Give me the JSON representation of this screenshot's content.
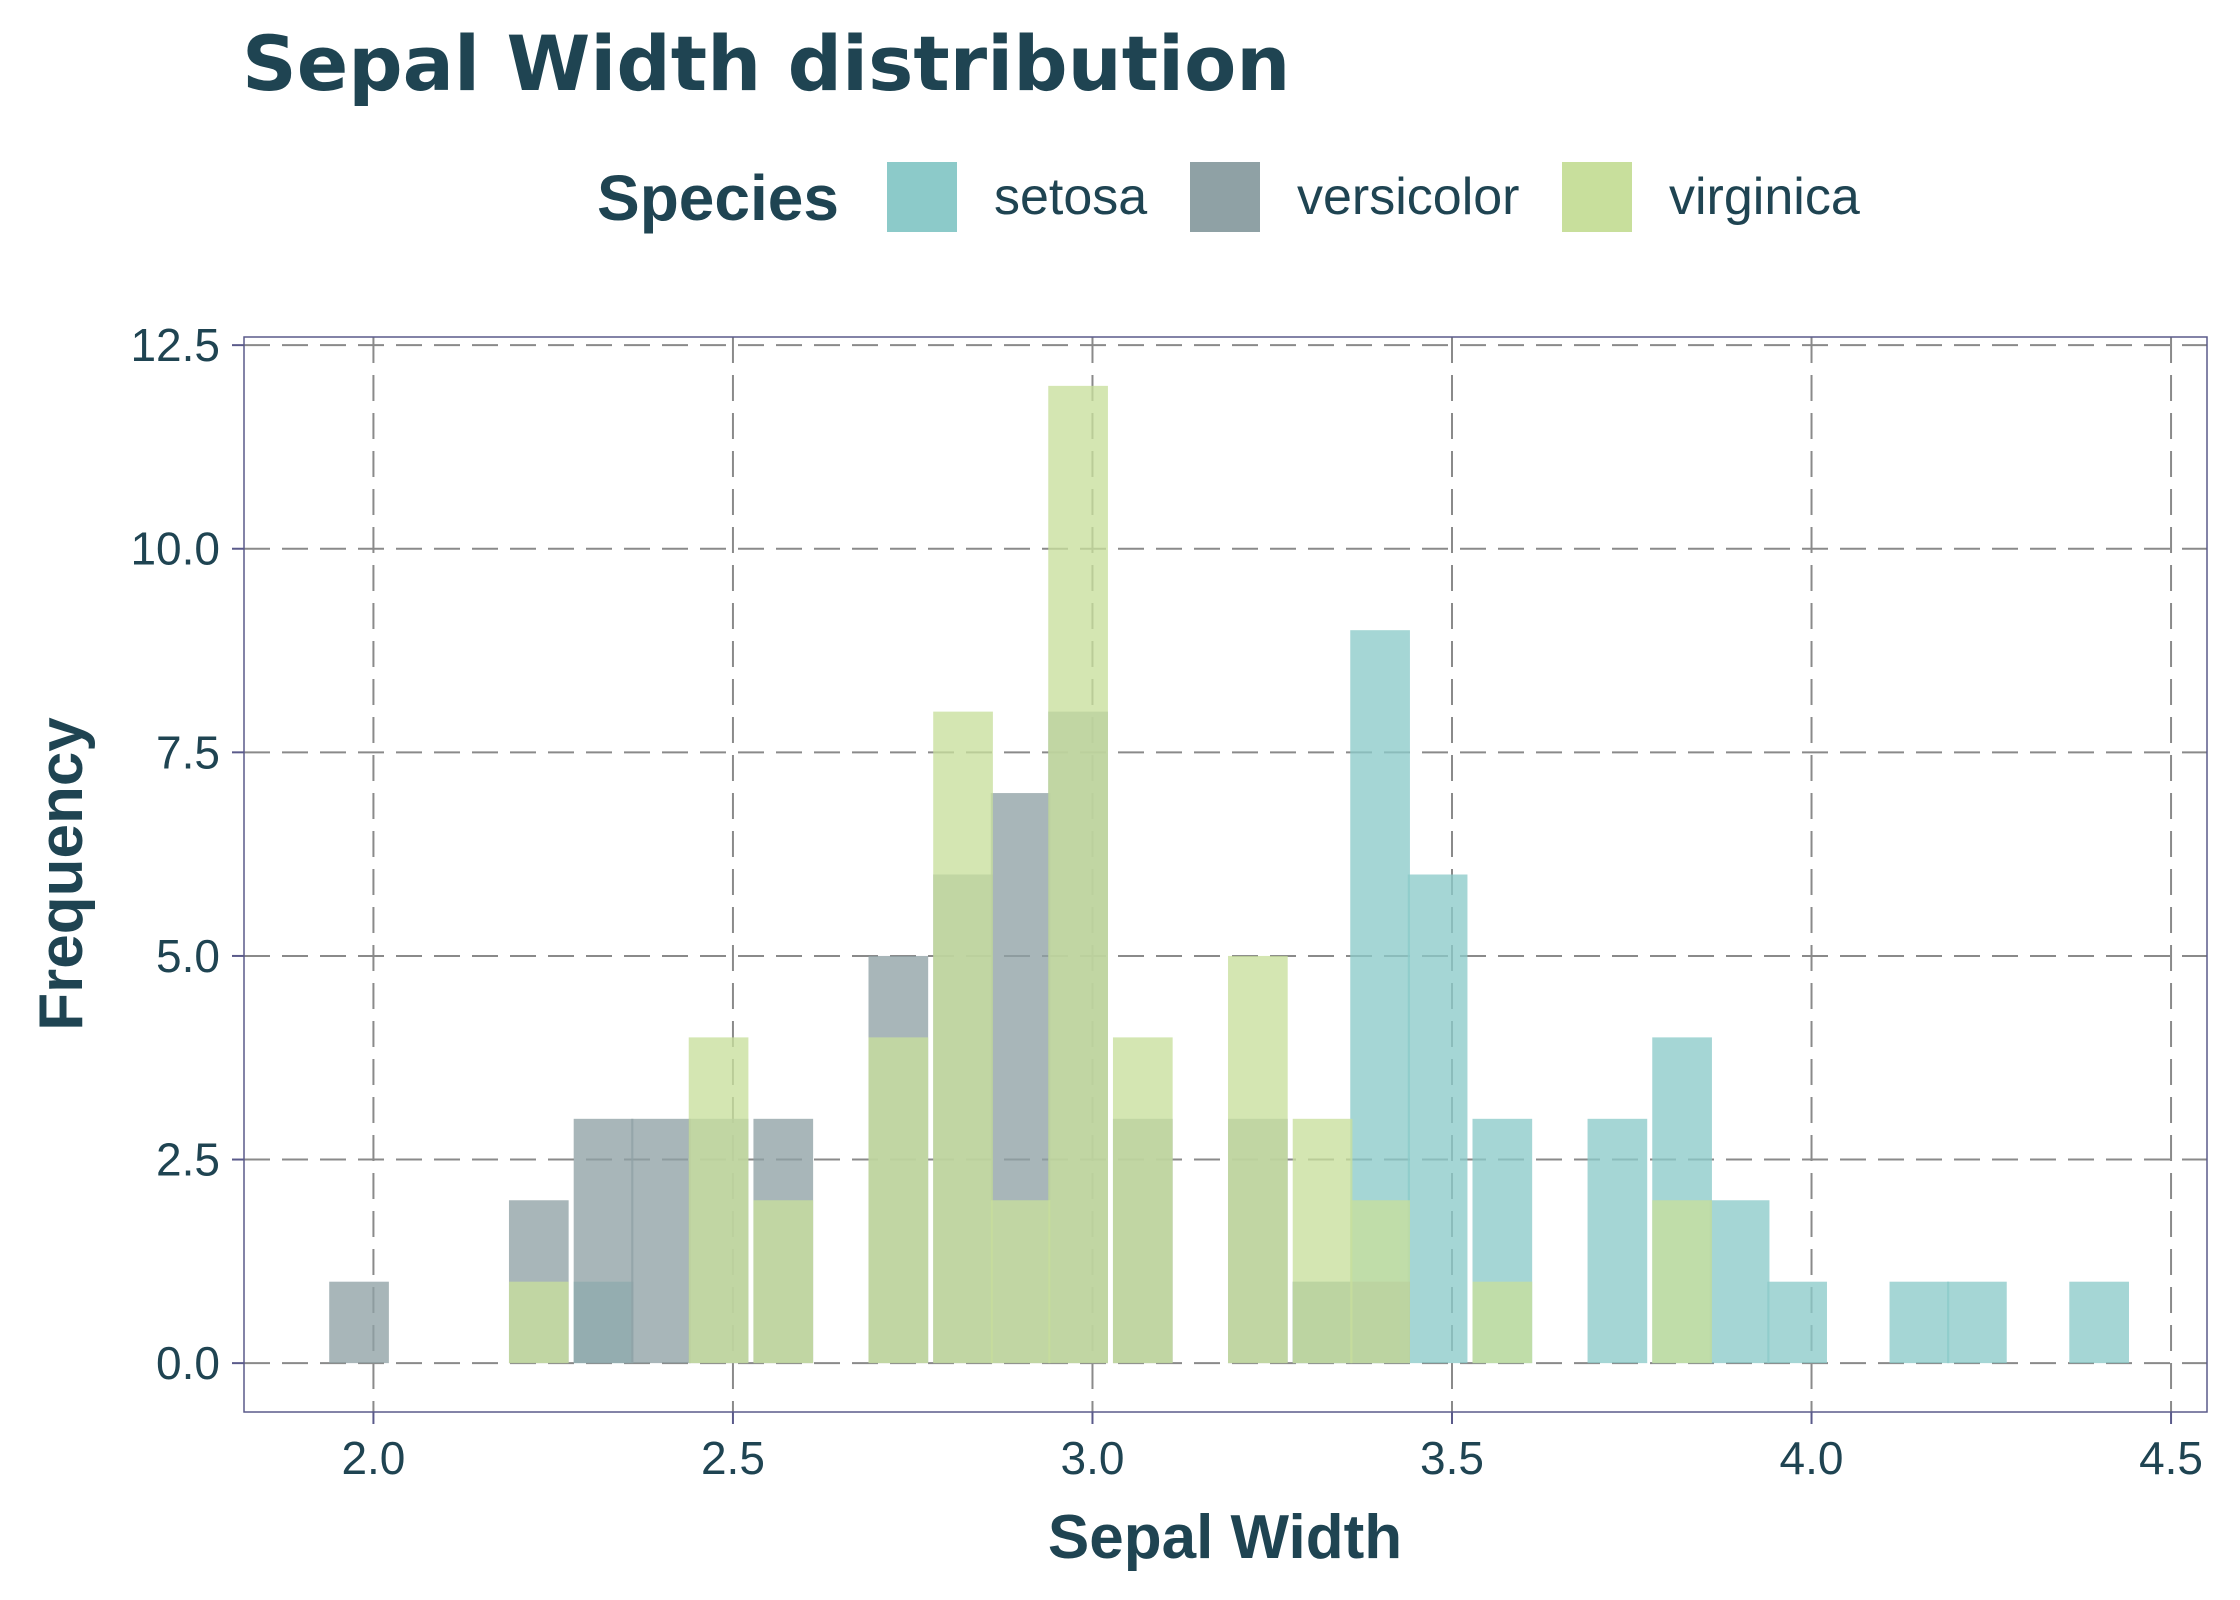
{
  "chart_data": {
    "type": "bar",
    "title": "Sepal Width distribution",
    "xlabel": "Sepal Width",
    "ylabel": "Frequency",
    "xlim": [
      1.82,
      4.55
    ],
    "ylim": [
      -0.6,
      12.6
    ],
    "x_ticks": [
      2.0,
      2.5,
      3.0,
      3.5,
      4.0,
      4.5
    ],
    "x_tick_labels": [
      "2.0",
      "2.5",
      "3.0",
      "3.5",
      "4.0",
      "4.5"
    ],
    "y_ticks": [
      0,
      2.5,
      5,
      7.5,
      10,
      12.5
    ],
    "y_tick_labels": [
      "0.0",
      "2.5",
      "5.0",
      "7.5",
      "10.0",
      "12.5"
    ],
    "grid": true,
    "legend": {
      "title": "Species",
      "position": "top"
    },
    "bin_width": 0.083,
    "series": [
      {
        "name": "setosa",
        "color": "#8ccac9",
        "bins": [
          {
            "x": 2.32,
            "count": 1
          },
          {
            "x": 3.32,
            "count": 1
          },
          {
            "x": 3.4,
            "count": 9
          },
          {
            "x": 3.48,
            "count": 6
          },
          {
            "x": 3.57,
            "count": 3
          },
          {
            "x": 3.73,
            "count": 3
          },
          {
            "x": 3.82,
            "count": 4
          },
          {
            "x": 3.9,
            "count": 2
          },
          {
            "x": 3.98,
            "count": 1
          },
          {
            "x": 4.15,
            "count": 1
          },
          {
            "x": 4.23,
            "count": 1
          },
          {
            "x": 4.4,
            "count": 1
          }
        ]
      },
      {
        "name": "versicolor",
        "color": "#8fa1a5",
        "bins": [
          {
            "x": 1.98,
            "count": 1
          },
          {
            "x": 2.23,
            "count": 2
          },
          {
            "x": 2.32,
            "count": 3
          },
          {
            "x": 2.4,
            "count": 3
          },
          {
            "x": 2.48,
            "count": 3
          },
          {
            "x": 2.57,
            "count": 3
          },
          {
            "x": 2.73,
            "count": 5
          },
          {
            "x": 2.82,
            "count": 6
          },
          {
            "x": 2.9,
            "count": 7
          },
          {
            "x": 2.98,
            "count": 8
          },
          {
            "x": 3.07,
            "count": 3
          },
          {
            "x": 3.23,
            "count": 3
          },
          {
            "x": 3.32,
            "count": 1
          },
          {
            "x": 3.4,
            "count": 1
          }
        ]
      },
      {
        "name": "virginica",
        "color": "#c8df9c",
        "bins": [
          {
            "x": 2.23,
            "count": 1
          },
          {
            "x": 2.48,
            "count": 4
          },
          {
            "x": 2.57,
            "count": 2
          },
          {
            "x": 2.73,
            "count": 4
          },
          {
            "x": 2.82,
            "count": 8
          },
          {
            "x": 2.9,
            "count": 2
          },
          {
            "x": 2.98,
            "count": 12
          },
          {
            "x": 3.07,
            "count": 4
          },
          {
            "x": 3.23,
            "count": 5
          },
          {
            "x": 3.32,
            "count": 3
          },
          {
            "x": 3.4,
            "count": 2
          },
          {
            "x": 3.57,
            "count": 1
          },
          {
            "x": 3.82,
            "count": 2
          }
        ]
      }
    ]
  }
}
